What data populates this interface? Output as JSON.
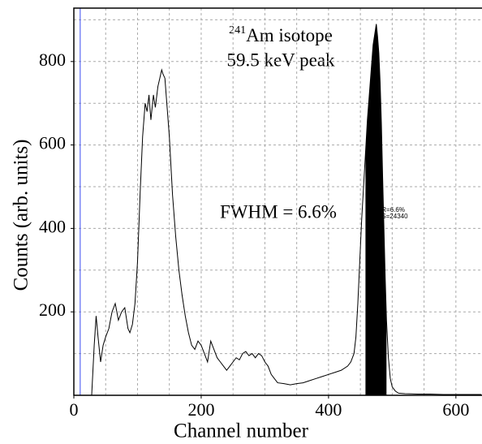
{
  "chart_data": {
    "type": "line",
    "title_sup": "241",
    "title": "Am isotope",
    "subtitle": "59.5 keV peak",
    "annotation": "FWHM = 6.6%",
    "roi_labels": [
      "R=6.6%",
      "S=24340"
    ],
    "xlabel": "Channel number",
    "ylabel": "Counts (arb. units)",
    "x": [
      28,
      32,
      35,
      38,
      42,
      46,
      50,
      55,
      60,
      65,
      70,
      75,
      80,
      85,
      88,
      92,
      96,
      100,
      104,
      108,
      112,
      115,
      118,
      121,
      125,
      128,
      132,
      135,
      138,
      140,
      143,
      146,
      150,
      155,
      160,
      165,
      170,
      175,
      180,
      185,
      190,
      195,
      200,
      205,
      210,
      215,
      220,
      225,
      230,
      235,
      240,
      245,
      250,
      255,
      260,
      265,
      270,
      275,
      280,
      285,
      290,
      295,
      300,
      305,
      310,
      315,
      320,
      330,
      340,
      350,
      360,
      370,
      380,
      390,
      400,
      410,
      420,
      430,
      435,
      440,
      443,
      446,
      449,
      452,
      455,
      458,
      461,
      464,
      467,
      470,
      473,
      475,
      477,
      479,
      481,
      483,
      485,
      487,
      489,
      491,
      494,
      497,
      500,
      505,
      510,
      520,
      540,
      560,
      580,
      600,
      620,
      640
    ],
    "values": [
      0,
      120,
      190,
      140,
      80,
      120,
      140,
      160,
      200,
      220,
      180,
      200,
      210,
      160,
      150,
      170,
      220,
      320,
      480,
      620,
      700,
      680,
      720,
      660,
      720,
      690,
      740,
      760,
      780,
      770,
      760,
      700,
      620,
      480,
      380,
      300,
      240,
      190,
      150,
      120,
      110,
      130,
      120,
      100,
      80,
      130,
      110,
      90,
      80,
      70,
      60,
      70,
      80,
      90,
      85,
      100,
      105,
      95,
      100,
      90,
      100,
      95,
      80,
      70,
      50,
      40,
      30,
      28,
      25,
      28,
      30,
      35,
      40,
      45,
      50,
      55,
      60,
      70,
      80,
      100,
      140,
      220,
      320,
      420,
      500,
      580,
      660,
      720,
      780,
      840,
      870,
      890,
      860,
      820,
      750,
      650,
      520,
      400,
      280,
      180,
      90,
      40,
      20,
      10,
      5,
      4,
      3,
      3,
      2,
      2,
      2,
      2
    ],
    "color": "#000000",
    "roi": [
      458,
      491
    ],
    "roi_color": "#000000",
    "cursor_x": 10,
    "cursor_color": "#3a4cf0",
    "xlim": [
      0,
      641
    ],
    "ylim": [
      0,
      928
    ],
    "xticks": [
      0,
      200,
      400,
      600
    ],
    "yticks": [
      200,
      400,
      600,
      800
    ],
    "xgrid": [
      50,
      100,
      150,
      200,
      250,
      300,
      350,
      400,
      450,
      500,
      550,
      600
    ],
    "ygrid": [
      100,
      200,
      300,
      400,
      500,
      600,
      700,
      800,
      900
    ],
    "grid": true
  }
}
